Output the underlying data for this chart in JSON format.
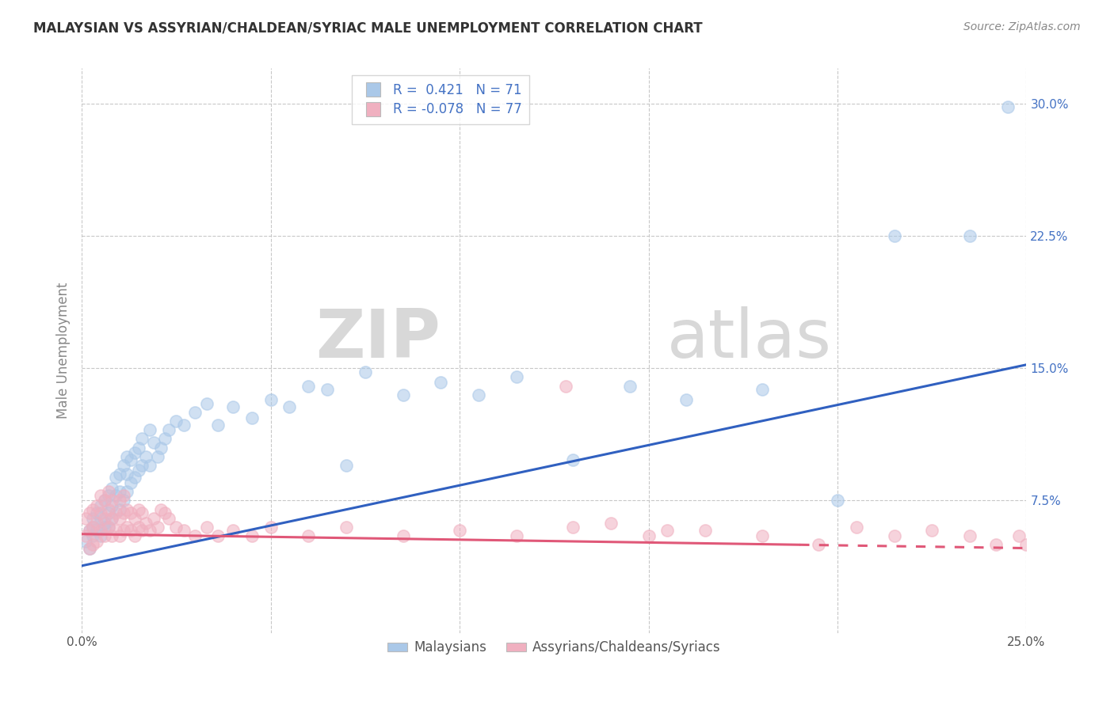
{
  "title": "MALAYSIAN VS ASSYRIAN/CHALDEAN/SYRIAC MALE UNEMPLOYMENT CORRELATION CHART",
  "source": "Source: ZipAtlas.com",
  "xlabel_label": "Malaysians",
  "xlabel_label2": "Assyrians/Chaldeans/Syriacs",
  "ylabel": "Male Unemployment",
  "xmin": 0.0,
  "xmax": 0.25,
  "ymin": 0.0,
  "ymax": 0.32,
  "blue_R": 0.421,
  "blue_N": 71,
  "pink_R": -0.078,
  "pink_N": 77,
  "blue_color": "#aac8e8",
  "pink_color": "#f0b0c0",
  "blue_line_color": "#3060c0",
  "pink_line_color": "#e05878",
  "watermark_zip": "ZIP",
  "watermark_atlas": "atlas",
  "background_color": "#ffffff",
  "grid_color": "#c8c8c8",
  "blue_trend_x0": 0.0,
  "blue_trend_y0": 0.038,
  "blue_trend_x1": 0.25,
  "blue_trend_y1": 0.152,
  "pink_trend_x0": 0.0,
  "pink_trend_y0": 0.056,
  "pink_trend_x1": 0.25,
  "pink_trend_y1": 0.048,
  "blue_scatter_x": [
    0.001,
    0.002,
    0.002,
    0.003,
    0.003,
    0.003,
    0.004,
    0.004,
    0.005,
    0.005,
    0.005,
    0.006,
    0.006,
    0.006,
    0.007,
    0.007,
    0.007,
    0.008,
    0.008,
    0.008,
    0.009,
    0.009,
    0.01,
    0.01,
    0.01,
    0.011,
    0.011,
    0.012,
    0.012,
    0.012,
    0.013,
    0.013,
    0.014,
    0.014,
    0.015,
    0.015,
    0.016,
    0.016,
    0.017,
    0.018,
    0.018,
    0.019,
    0.02,
    0.021,
    0.022,
    0.023,
    0.025,
    0.027,
    0.03,
    0.033,
    0.036,
    0.04,
    0.045,
    0.05,
    0.055,
    0.06,
    0.065,
    0.07,
    0.075,
    0.085,
    0.095,
    0.105,
    0.115,
    0.13,
    0.145,
    0.16,
    0.18,
    0.2,
    0.215,
    0.235,
    0.245
  ],
  "blue_scatter_y": [
    0.052,
    0.058,
    0.048,
    0.06,
    0.055,
    0.065,
    0.058,
    0.068,
    0.055,
    0.065,
    0.072,
    0.06,
    0.075,
    0.062,
    0.068,
    0.078,
    0.06,
    0.072,
    0.082,
    0.065,
    0.078,
    0.088,
    0.07,
    0.08,
    0.09,
    0.075,
    0.095,
    0.08,
    0.09,
    0.1,
    0.085,
    0.098,
    0.088,
    0.102,
    0.092,
    0.105,
    0.095,
    0.11,
    0.1,
    0.095,
    0.115,
    0.108,
    0.1,
    0.105,
    0.11,
    0.115,
    0.12,
    0.118,
    0.125,
    0.13,
    0.118,
    0.128,
    0.122,
    0.132,
    0.128,
    0.14,
    0.138,
    0.095,
    0.148,
    0.135,
    0.142,
    0.135,
    0.145,
    0.098,
    0.14,
    0.132,
    0.138,
    0.075,
    0.225,
    0.225,
    0.298
  ],
  "pink_scatter_x": [
    0.001,
    0.001,
    0.002,
    0.002,
    0.002,
    0.003,
    0.003,
    0.003,
    0.004,
    0.004,
    0.004,
    0.005,
    0.005,
    0.005,
    0.006,
    0.006,
    0.006,
    0.007,
    0.007,
    0.007,
    0.008,
    0.008,
    0.008,
    0.009,
    0.009,
    0.01,
    0.01,
    0.01,
    0.011,
    0.011,
    0.011,
    0.012,
    0.012,
    0.013,
    0.013,
    0.014,
    0.014,
    0.015,
    0.015,
    0.016,
    0.016,
    0.017,
    0.018,
    0.019,
    0.02,
    0.021,
    0.022,
    0.023,
    0.025,
    0.027,
    0.03,
    0.033,
    0.036,
    0.04,
    0.045,
    0.05,
    0.06,
    0.07,
    0.085,
    0.1,
    0.115,
    0.13,
    0.15,
    0.165,
    0.18,
    0.195,
    0.205,
    0.215,
    0.225,
    0.235,
    0.242,
    0.248,
    0.25,
    0.252,
    0.128,
    0.14,
    0.155
  ],
  "pink_scatter_y": [
    0.055,
    0.065,
    0.058,
    0.068,
    0.048,
    0.06,
    0.07,
    0.05,
    0.062,
    0.072,
    0.052,
    0.058,
    0.068,
    0.078,
    0.055,
    0.065,
    0.075,
    0.06,
    0.07,
    0.08,
    0.055,
    0.065,
    0.075,
    0.058,
    0.068,
    0.055,
    0.065,
    0.075,
    0.058,
    0.068,
    0.078,
    0.06,
    0.07,
    0.058,
    0.068,
    0.055,
    0.065,
    0.06,
    0.07,
    0.058,
    0.068,
    0.062,
    0.058,
    0.065,
    0.06,
    0.07,
    0.068,
    0.065,
    0.06,
    0.058,
    0.055,
    0.06,
    0.055,
    0.058,
    0.055,
    0.06,
    0.055,
    0.06,
    0.055,
    0.058,
    0.055,
    0.06,
    0.055,
    0.058,
    0.055,
    0.05,
    0.06,
    0.055,
    0.058,
    0.055,
    0.05,
    0.055,
    0.05,
    0.048,
    0.14,
    0.062,
    0.058
  ]
}
